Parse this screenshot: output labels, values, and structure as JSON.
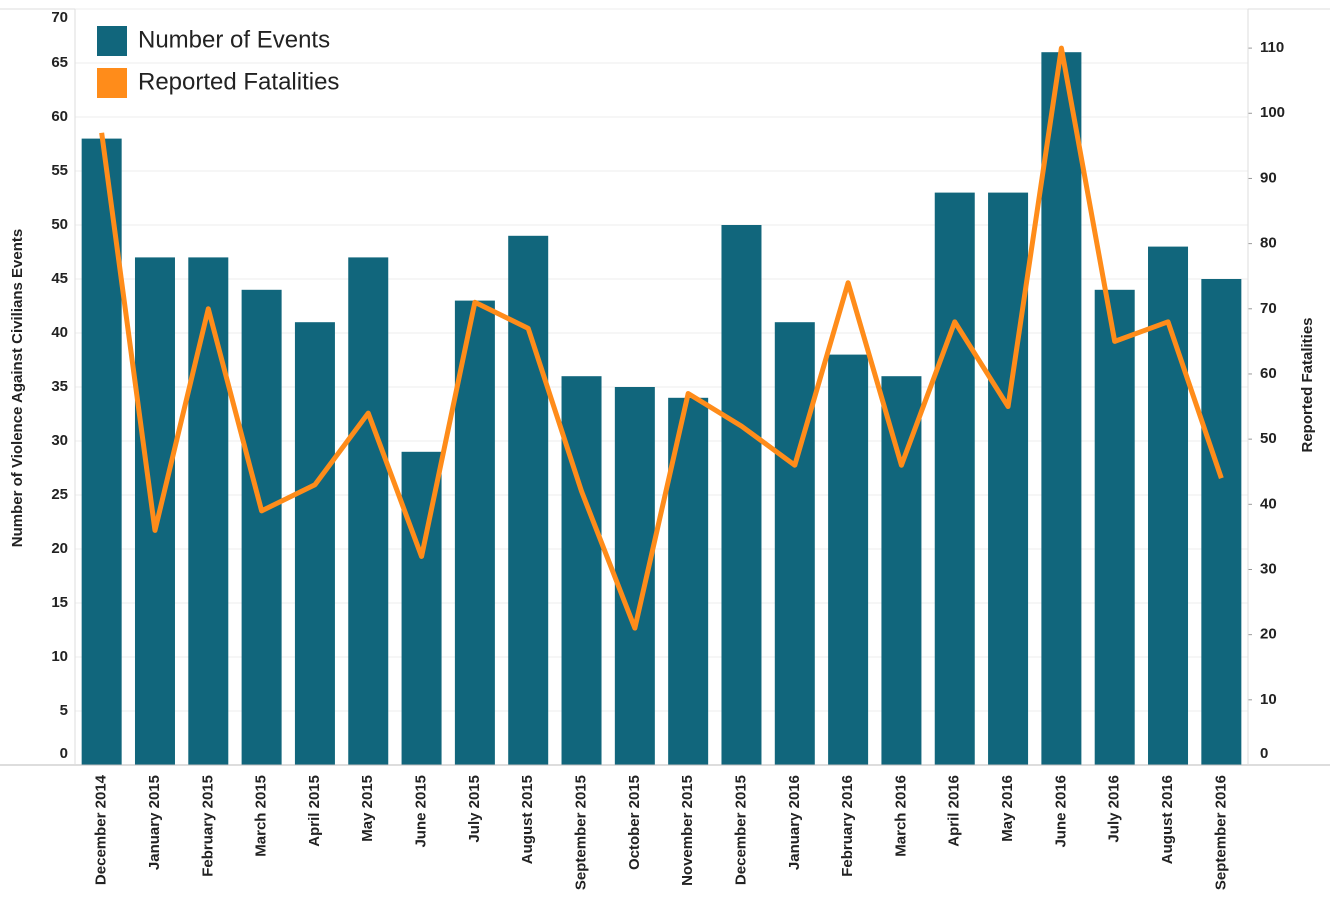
{
  "chart_data": {
    "type": "bar_line",
    "categories": [
      "December 2014",
      "January 2015",
      "February 2015",
      "March 2015",
      "April 2015",
      "May 2015",
      "June 2015",
      "July 2015",
      "August 2015",
      "September 2015",
      "October 2015",
      "November 2015",
      "December 2015",
      "January 2016",
      "February 2016",
      "March 2016",
      "April 2016",
      "May 2016",
      "June 2016",
      "July 2016",
      "August 2016",
      "September 2016"
    ],
    "series": [
      {
        "name": "Number of Events",
        "color": "#11667c",
        "type": "bar",
        "values": [
          58,
          47,
          47,
          44,
          41,
          47,
          29,
          43,
          49,
          36,
          35,
          34,
          50,
          41,
          38,
          36,
          53,
          53,
          66,
          44,
          48,
          45
        ]
      },
      {
        "name": "Reported Fatalities",
        "color": "#ff8c1a",
        "type": "line",
        "axis": "y2",
        "values": [
          97,
          36,
          70,
          39,
          43,
          54,
          32,
          71,
          67,
          42,
          21,
          57,
          52,
          46,
          74,
          46,
          68,
          55,
          110,
          65,
          68,
          44
        ]
      }
    ],
    "y_label": "Number of Violence Against Civilians Events",
    "y2_label": "Reported Fatalities",
    "ylim": [
      0,
      70
    ],
    "yticks": [
      0,
      5,
      10,
      15,
      20,
      25,
      30,
      35,
      40,
      45,
      50,
      55,
      60,
      65,
      70
    ],
    "y2lim": [
      0,
      116
    ],
    "y2ticks": [
      0,
      10,
      20,
      30,
      40,
      50,
      60,
      70,
      80,
      90,
      100,
      110
    ],
    "grid": true,
    "legend": "top-left"
  }
}
